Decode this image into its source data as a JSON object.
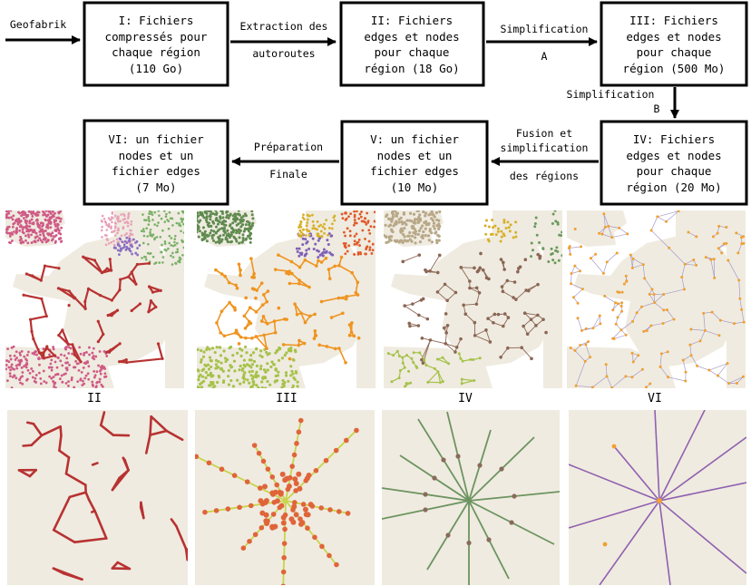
{
  "pipeline": {
    "source": "Geofabrik",
    "boxes": [
      {
        "id": "I",
        "lines": [
          "I: Fichiers",
          "compressés pour",
          "chaque région",
          "(110 Go)"
        ]
      },
      {
        "id": "II",
        "lines": [
          "II: Fichiers",
          "edges et nodes",
          "pour chaque",
          "région (18 Go)"
        ]
      },
      {
        "id": "III",
        "lines": [
          "III: Fichiers",
          "edges et nodes",
          "pour chaque",
          "région (500 Mo)"
        ]
      },
      {
        "id": "IV",
        "lines": [
          "IV: Fichiers",
          "edges et nodes",
          "pour chaque",
          "région (20 Mo)"
        ]
      },
      {
        "id": "V",
        "lines": [
          "V: un fichier",
          "nodes et un",
          "fichier edges",
          "(10 Mo)"
        ]
      },
      {
        "id": "VI",
        "lines": [
          "VI: un fichier",
          "nodes et un",
          "fichier edges",
          "(7 Mo)"
        ]
      }
    ],
    "arrows": [
      {
        "id": "extraction",
        "lines": [
          "Extraction des",
          "autoroutes"
        ]
      },
      {
        "id": "simplification-a",
        "lines": [
          "Simplification",
          "A"
        ]
      },
      {
        "id": "simplification-b",
        "lines": [
          "Simplification",
          "B"
        ]
      },
      {
        "id": "fusion",
        "lines": [
          "Fusion et",
          "simplification",
          "des régions"
        ]
      },
      {
        "id": "preparation",
        "lines": [
          "Préparation",
          "Finale"
        ]
      }
    ]
  },
  "maps": {
    "captions": [
      "II",
      "III",
      "IV",
      "VI"
    ],
    "colors": {
      "land": "#efebe0",
      "sea": "#ffffff",
      "ii_road": "#b83232",
      "ii_pink": "#cf5a86",
      "ii_lightpink": "#e8a0b8",
      "ii_green": "#78b066",
      "ii_purple": "#8a6fc2",
      "iii_orange": "#ef9420",
      "iii_green": "#5f8a4f",
      "iii_olive": "#a6c24a",
      "iii_red": "#e05a2a",
      "iii_purple": "#8060b8",
      "iii_yellow": "#d8b02a",
      "iv_brown": "#8b6654",
      "iv_tan": "#b8a888",
      "iv_green": "#6a9a5a",
      "vi_lavender": "#a89ac8",
      "vi_orange": "#f0a030"
    }
  },
  "zooms": {
    "colors": {
      "ii_road": "#b83232",
      "iii_node": "#e0643a",
      "iii_edge": "#c8d44a",
      "iv_edge": "#6d9460",
      "iv_node": "#8a6a5a",
      "vi_edge": "#9060b0",
      "vi_node": "#f0a030"
    }
  }
}
